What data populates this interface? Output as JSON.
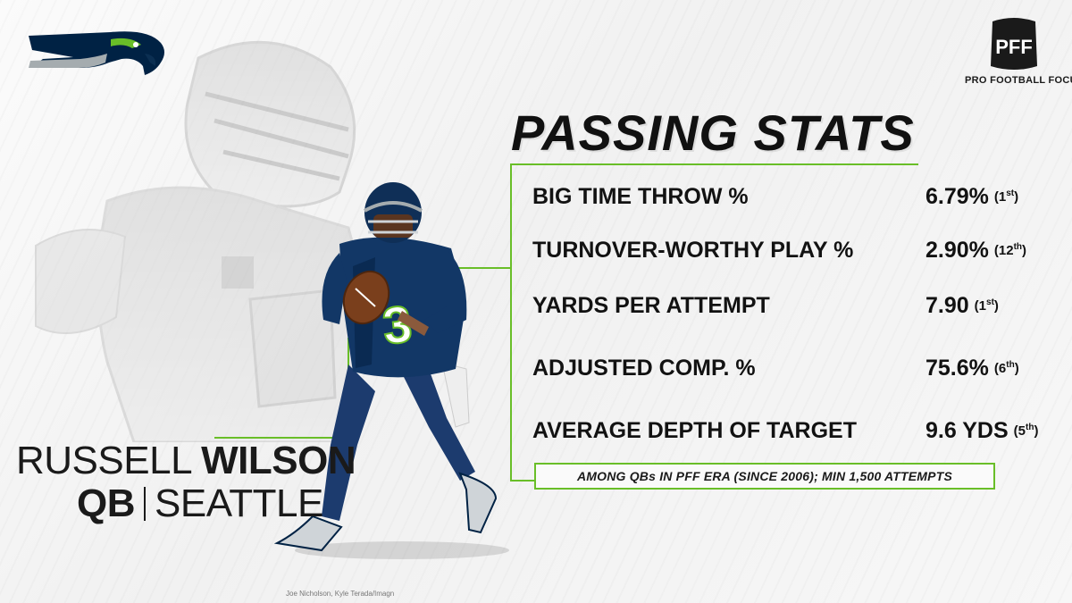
{
  "header": {
    "title": "PASSING STATS",
    "brand_tagline": "PRO FOOTBALL FOCUS",
    "brand_mark": "PFF"
  },
  "player": {
    "first_name": "RUSSELL",
    "last_name": "WILSON",
    "position": "QB",
    "team": "SEATTLE",
    "jersey_number": "3"
  },
  "stats": [
    {
      "label": "BIG TIME THROW %",
      "value": "6.79%",
      "rank_num": "(1",
      "rank_suffix": "st",
      "rank_close": ")"
    },
    {
      "label": "TURNOVER-WORTHY PLAY %",
      "value": "2.90%",
      "rank_num": "(12",
      "rank_suffix": "th",
      "rank_close": ")"
    },
    {
      "label": "YARDS PER ATTEMPT",
      "value": "7.90",
      "rank_num": "(1",
      "rank_suffix": "st",
      "rank_close": ")"
    },
    {
      "label": "ADJUSTED COMP. %",
      "value": "75.6%",
      "rank_num": "(6",
      "rank_suffix": "th",
      "rank_close": ")"
    },
    {
      "label": "AVERAGE DEPTH OF TARGET",
      "value": "9.6 YDS",
      "rank_num": "(5",
      "rank_suffix": "th",
      "rank_close": ")"
    }
  ],
  "footnote": "AMONG QBs IN PFF ERA (SINCE 2006); MIN 1,500 ATTEMPTS",
  "photo_credit": "Joe Nicholson, Kyle Terada/Imagn",
  "colors": {
    "accent_green": "#69be28",
    "navy": "#002244",
    "wolf_grey": "#a5acaf"
  },
  "icons": [
    "seahawks-logo-icon",
    "pff-logo-icon"
  ]
}
